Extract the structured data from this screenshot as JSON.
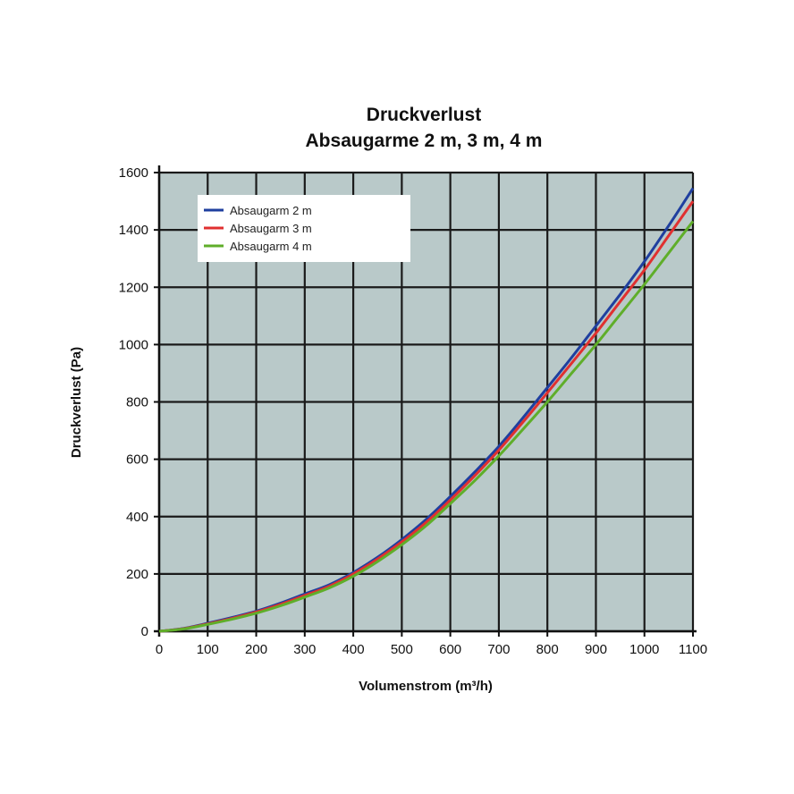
{
  "chart_data": {
    "type": "line",
    "title_line1": "Druckverlust",
    "title_line2": "Absaugarme 2 m, 3 m, 4 m",
    "xlabel": "Volumenstrom (m³/h)",
    "ylabel": "Druckverlust (Pa)",
    "xlim": [
      0,
      1100
    ],
    "ylim": [
      0,
      1600
    ],
    "xticks": [
      "0",
      "100",
      "200",
      "300",
      "400",
      "500",
      "600",
      "700",
      "800",
      "900",
      "1000",
      "1100"
    ],
    "yticks": [
      "0",
      "200",
      "400",
      "600",
      "800",
      "1000",
      "1200",
      "1400",
      "1600"
    ],
    "grid": true,
    "legend_position": "top-left",
    "plot_background": "#b9c9c9",
    "x": [
      0,
      50,
      100,
      150,
      200,
      250,
      300,
      350,
      400,
      450,
      500,
      550,
      600,
      650,
      700,
      750,
      800,
      850,
      900,
      950,
      1000,
      1050,
      1100
    ],
    "series": [
      {
        "name": "Absaugarm 2 m",
        "color": "#1f3f9f",
        "values": [
          0,
          10,
          28,
          48,
          70,
          98,
          130,
          162,
          205,
          258,
          320,
          390,
          470,
          555,
          645,
          745,
          850,
          955,
          1065,
          1175,
          1290,
          1415,
          1545
        ]
      },
      {
        "name": "Absaugarm 3 m",
        "color": "#e03030",
        "values": [
          0,
          9,
          26,
          45,
          67,
          94,
          125,
          157,
          200,
          252,
          312,
          380,
          458,
          542,
          632,
          730,
          832,
          935,
          1040,
          1150,
          1260,
          1380,
          1500
        ]
      },
      {
        "name": "Absaugarm 4 m",
        "color": "#5fae2a",
        "values": [
          0,
          8,
          24,
          42,
          63,
          89,
          119,
          151,
          192,
          243,
          302,
          368,
          445,
          525,
          612,
          705,
          800,
          900,
          1000,
          1105,
          1210,
          1320,
          1430
        ]
      }
    ]
  }
}
